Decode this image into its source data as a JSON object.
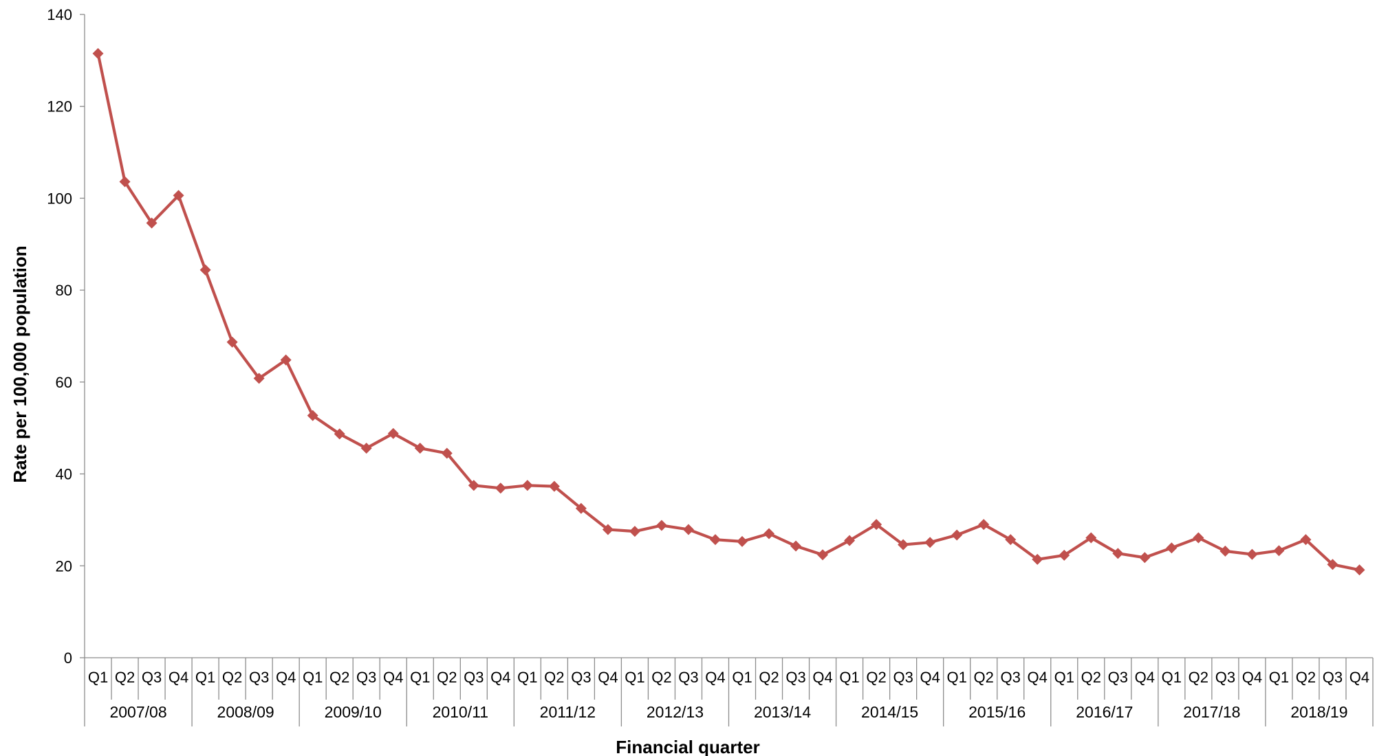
{
  "chart_data": {
    "type": "line",
    "title": "",
    "xlabel": "Financial quarter",
    "ylabel": "Rate per 100,000 population",
    "ylim": [
      0,
      140
    ],
    "yticks": [
      0,
      20,
      40,
      60,
      80,
      100,
      120,
      140
    ],
    "grid": false,
    "legend": "none",
    "quarters": [
      "Q1",
      "Q2",
      "Q3",
      "Q4"
    ],
    "years": [
      "2007/08",
      "2008/09",
      "2009/10",
      "2010/11",
      "2011/12",
      "2012/13",
      "2013/14",
      "2014/15",
      "2015/16",
      "2016/17",
      "2017/18",
      "2018/19"
    ],
    "series": [
      {
        "color": "#c0504d",
        "values": [
          131.5,
          103.6,
          94.6,
          100.6,
          84.4,
          68.7,
          60.8,
          64.8,
          52.7,
          48.7,
          45.6,
          48.8,
          45.6,
          44.5,
          37.5,
          36.9,
          37.5,
          37.3,
          32.5,
          27.9,
          27.5,
          28.8,
          27.9,
          25.7,
          25.3,
          27.0,
          24.3,
          22.4,
          25.5,
          29.0,
          24.6,
          25.1,
          26.7,
          29.0,
          25.7,
          21.4,
          22.3,
          26.1,
          22.7,
          21.8,
          23.9,
          26.1,
          23.2,
          22.5,
          23.3,
          25.7,
          20.3,
          19.1
        ]
      }
    ]
  }
}
